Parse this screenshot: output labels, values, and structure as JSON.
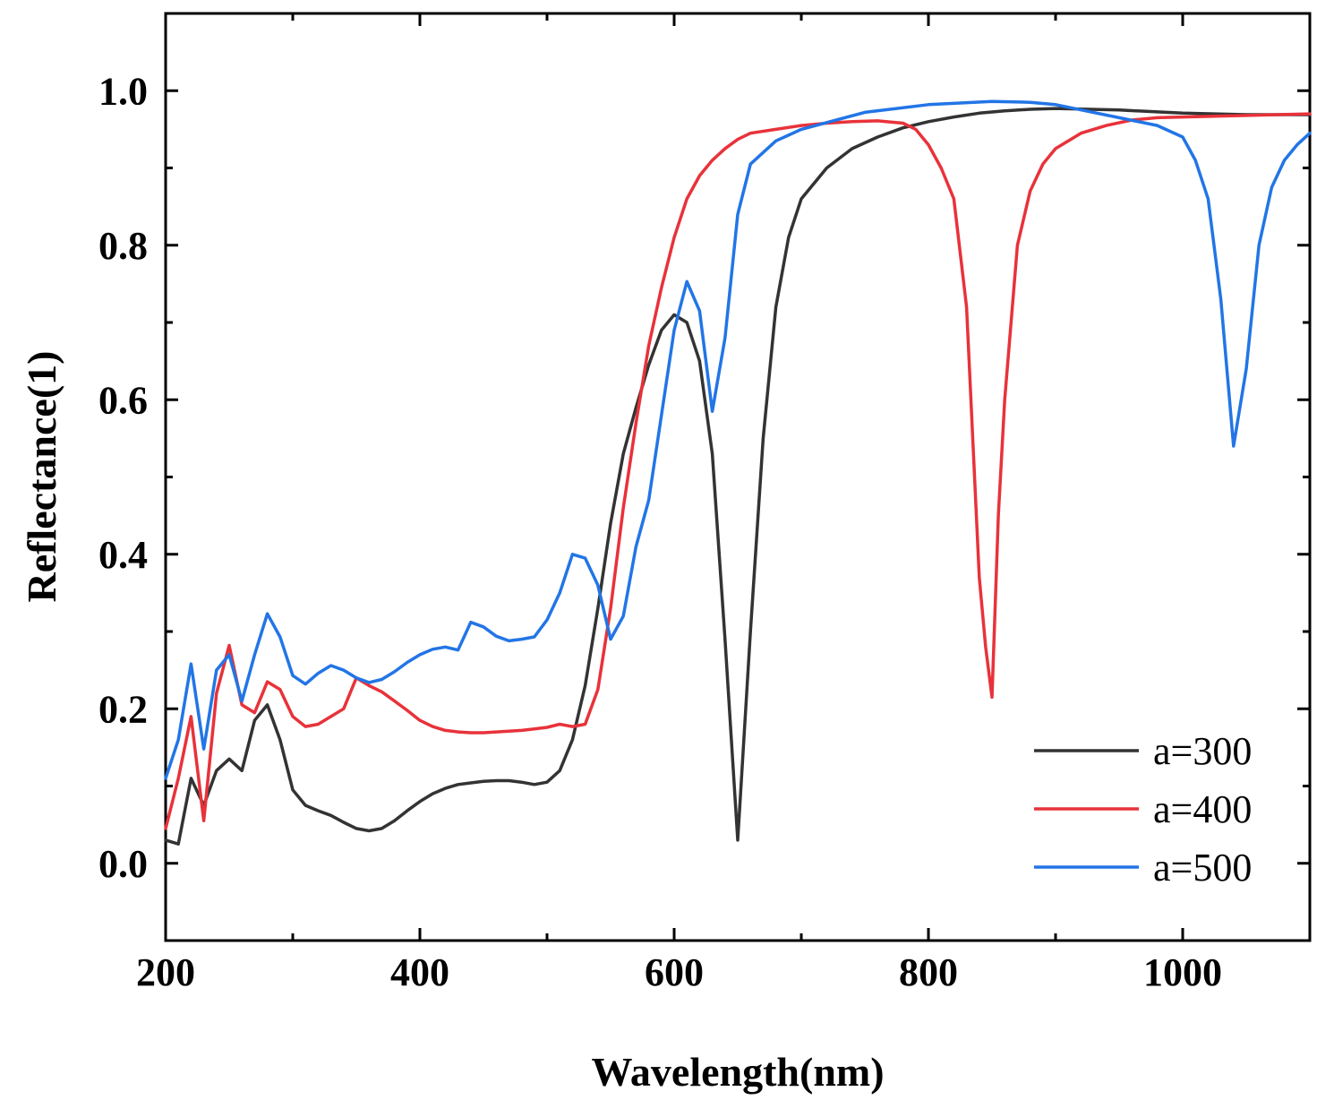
{
  "chart_data": {
    "type": "line",
    "title": "",
    "xlabel": "Wavelength(nm)",
    "ylabel": "Reflectance(1)",
    "xlim": [
      200,
      1100
    ],
    "ylim": [
      -0.1,
      1.1
    ],
    "xticks": [
      200,
      400,
      600,
      800,
      1000
    ],
    "xtick_labels": [
      "200",
      "400",
      "600",
      "800",
      "1000"
    ],
    "yticks": [
      0.0,
      0.2,
      0.4,
      0.6,
      0.8,
      1.0
    ],
    "ytick_labels": [
      "0.0",
      "0.2",
      "0.4",
      "0.6",
      "0.8",
      "1.0"
    ],
    "grid": false,
    "legend_position": "bottom-right",
    "series": [
      {
        "name": "a=300",
        "color": "#333333",
        "x": [
          200,
          210,
          220,
          230,
          240,
          250,
          260,
          270,
          280,
          290,
          300,
          310,
          320,
          330,
          340,
          350,
          360,
          370,
          380,
          390,
          400,
          410,
          420,
          430,
          440,
          450,
          460,
          470,
          480,
          490,
          500,
          510,
          520,
          530,
          540,
          550,
          560,
          570,
          580,
          590,
          600,
          610,
          620,
          630,
          640,
          650,
          660,
          670,
          680,
          690,
          700,
          710,
          720,
          740,
          760,
          780,
          800,
          820,
          840,
          860,
          880,
          900,
          950,
          1000,
          1050,
          1100
        ],
        "y": [
          0.03,
          0.025,
          0.11,
          0.075,
          0.12,
          0.135,
          0.12,
          0.185,
          0.205,
          0.16,
          0.095,
          0.075,
          0.068,
          0.062,
          0.053,
          0.045,
          0.042,
          0.045,
          0.055,
          0.068,
          0.08,
          0.09,
          0.097,
          0.102,
          0.104,
          0.106,
          0.107,
          0.107,
          0.105,
          0.102,
          0.105,
          0.12,
          0.16,
          0.23,
          0.33,
          0.44,
          0.53,
          0.59,
          0.645,
          0.69,
          0.71,
          0.7,
          0.65,
          0.53,
          0.29,
          0.03,
          0.3,
          0.55,
          0.72,
          0.81,
          0.86,
          0.88,
          0.9,
          0.925,
          0.94,
          0.952,
          0.96,
          0.966,
          0.971,
          0.974,
          0.976,
          0.977,
          0.975,
          0.971,
          0.969,
          0.969
        ]
      },
      {
        "name": "a=400",
        "color": "#e8323a",
        "x": [
          200,
          210,
          220,
          230,
          240,
          250,
          260,
          270,
          280,
          290,
          300,
          310,
          320,
          330,
          340,
          350,
          360,
          370,
          380,
          390,
          400,
          410,
          420,
          430,
          440,
          450,
          460,
          470,
          480,
          490,
          500,
          510,
          520,
          530,
          540,
          550,
          560,
          570,
          580,
          590,
          600,
          610,
          620,
          630,
          640,
          650,
          660,
          680,
          700,
          720,
          740,
          760,
          780,
          790,
          800,
          810,
          820,
          830,
          840,
          845,
          850,
          855,
          860,
          870,
          880,
          890,
          900,
          920,
          940,
          960,
          980,
          1000,
          1050,
          1100
        ],
        "y": [
          0.045,
          0.11,
          0.19,
          0.055,
          0.22,
          0.282,
          0.205,
          0.195,
          0.235,
          0.225,
          0.19,
          0.177,
          0.18,
          0.19,
          0.2,
          0.24,
          0.23,
          0.222,
          0.21,
          0.198,
          0.185,
          0.177,
          0.172,
          0.17,
          0.169,
          0.169,
          0.17,
          0.171,
          0.172,
          0.174,
          0.176,
          0.18,
          0.177,
          0.18,
          0.225,
          0.33,
          0.46,
          0.57,
          0.67,
          0.745,
          0.81,
          0.86,
          0.89,
          0.91,
          0.925,
          0.937,
          0.945,
          0.95,
          0.955,
          0.958,
          0.96,
          0.961,
          0.958,
          0.95,
          0.93,
          0.9,
          0.86,
          0.72,
          0.37,
          0.28,
          0.215,
          0.45,
          0.6,
          0.8,
          0.87,
          0.905,
          0.925,
          0.945,
          0.955,
          0.962,
          0.965,
          0.966,
          0.968,
          0.97
        ]
      },
      {
        "name": "a=500",
        "color": "#2275e6",
        "x": [
          200,
          210,
          220,
          230,
          240,
          250,
          260,
          270,
          280,
          290,
          300,
          310,
          320,
          330,
          340,
          350,
          360,
          370,
          380,
          390,
          400,
          410,
          420,
          430,
          440,
          450,
          460,
          470,
          480,
          490,
          500,
          510,
          520,
          530,
          540,
          550,
          560,
          570,
          580,
          590,
          600,
          610,
          620,
          630,
          640,
          650,
          660,
          680,
          700,
          750,
          800,
          850,
          880,
          900,
          950,
          980,
          1000,
          1010,
          1020,
          1030,
          1040,
          1050,
          1060,
          1070,
          1080,
          1090,
          1100
        ],
        "y": [
          0.11,
          0.16,
          0.258,
          0.148,
          0.25,
          0.27,
          0.21,
          0.27,
          0.323,
          0.293,
          0.243,
          0.232,
          0.246,
          0.256,
          0.25,
          0.24,
          0.234,
          0.238,
          0.248,
          0.26,
          0.27,
          0.277,
          0.28,
          0.276,
          0.312,
          0.306,
          0.294,
          0.288,
          0.29,
          0.293,
          0.315,
          0.35,
          0.4,
          0.395,
          0.36,
          0.29,
          0.32,
          0.41,
          0.47,
          0.58,
          0.69,
          0.753,
          0.715,
          0.585,
          0.68,
          0.84,
          0.905,
          0.935,
          0.95,
          0.972,
          0.982,
          0.986,
          0.985,
          0.982,
          0.965,
          0.955,
          0.94,
          0.91,
          0.86,
          0.73,
          0.54,
          0.64,
          0.8,
          0.875,
          0.91,
          0.93,
          0.945
        ]
      }
    ]
  }
}
